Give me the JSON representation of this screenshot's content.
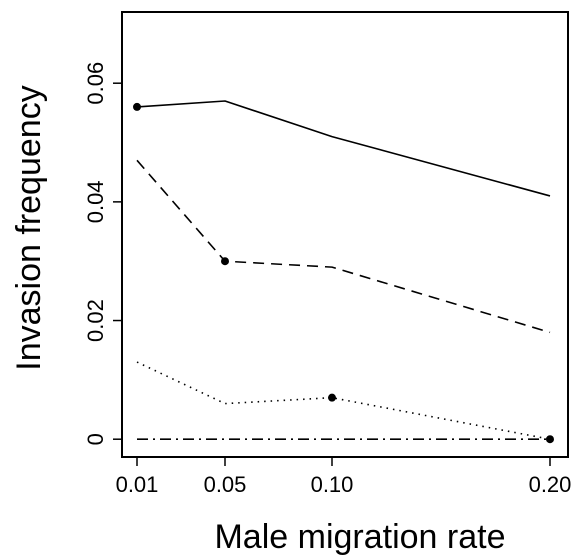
{
  "chart_data": {
    "type": "line",
    "title": "",
    "xlabel": "Male migration rate",
    "ylabel": "Invasion frequency",
    "x": [
      0.01,
      0.05,
      0.1,
      0.2
    ],
    "x_tick_labels": [
      "0.01",
      "0.05",
      "0.10",
      "0.20"
    ],
    "x_scale": "categorical-positions",
    "y_ticks": [
      0,
      0.02,
      0.04,
      0.06
    ],
    "y_tick_labels": [
      "0",
      "0.02",
      "0.04",
      "0.06"
    ],
    "ylim": [
      -0.003,
      0.072
    ],
    "grid": false,
    "legend": "none",
    "series": [
      {
        "line_style": "solid",
        "values": [
          0.056,
          0.057,
          0.051,
          0.041
        ],
        "marker_indices": [
          0
        ]
      },
      {
        "line_style": "dashed",
        "values": [
          0.047,
          0.03,
          0.029,
          0.018
        ],
        "marker_indices": [
          1
        ]
      },
      {
        "line_style": "dotted",
        "values": [
          0.013,
          0.006,
          0.007,
          0.0
        ],
        "marker_indices": [
          2
        ]
      },
      {
        "line_style": "dash-dot",
        "values": [
          0.0,
          0.0,
          0.0,
          0.0
        ],
        "marker_indices": [
          3
        ]
      }
    ]
  }
}
